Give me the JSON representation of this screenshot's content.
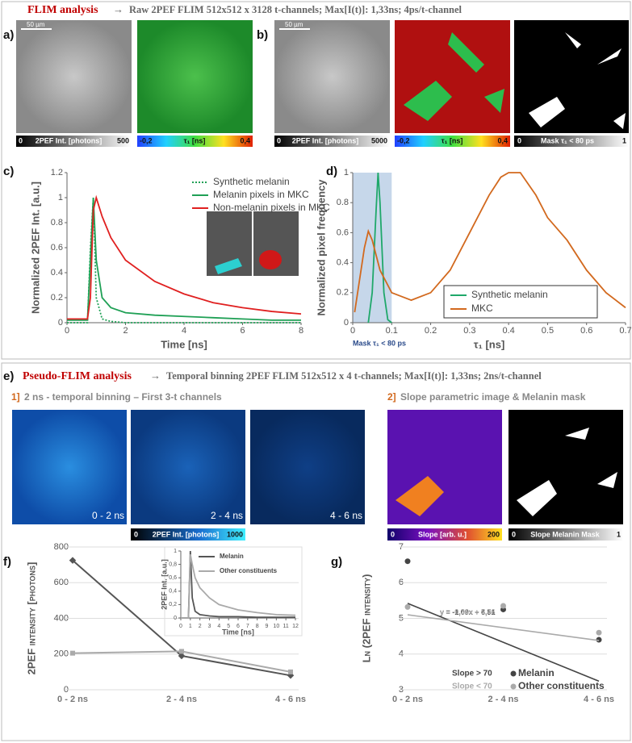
{
  "header": {
    "title": "FLIM analysis",
    "subtitle": "Raw 2PEF FLIM 512x512 x 3128 t-channels; Max[I(t)]: 1,33ns; 4ps/t-channel"
  },
  "panel_labels": [
    "a)",
    "b)",
    "c)",
    "d)",
    "e)",
    "f)",
    "g)"
  ],
  "scale_bars": [
    "50 µm",
    "50 µm"
  ],
  "colorbars": [
    {
      "min": "0",
      "label": "2PEF Int. [photons]",
      "max": "500"
    },
    {
      "min": "-0,2",
      "label": "τ₁ [ns]",
      "max": "0,4"
    },
    {
      "min": "0",
      "label": "2PEF Int. [photons]",
      "max": "5000"
    },
    {
      "min": "-0,2",
      "label": "τ₁ [ns]",
      "max": "0,4"
    },
    {
      "min": "0",
      "label": "Mask τ₁ < 80 ps",
      "max": "1"
    },
    {
      "min": "0",
      "label": "2PEF Int. [photons]",
      "max": "1000"
    },
    {
      "min": "0",
      "label": "Slope [arb. u.]",
      "max": "200"
    },
    {
      "min": "0",
      "label": "Slope Melanin Mask",
      "max": "1"
    }
  ],
  "section2": {
    "title": "Pseudo-FLIM analysis",
    "subtitle": "Temporal binning 2PEF FLIM 512x512 x 4 t-channels; Max[I(t)]: 1,33ns; 2ns/t-channel",
    "step1": {
      "num": "1]",
      "text": "2 ns - temporal binning – First 3-t channels"
    },
    "step2": {
      "num": "2]",
      "text": "Slope parametric image & Melanin mask"
    },
    "bins": [
      "0 - 2 ns",
      "2 - 4 ns",
      "4 - 6 ns"
    ]
  },
  "chart_data": [
    {
      "type": "line",
      "xlabel": "Time [ns]",
      "ylabel": "Normalized 2PEF Int. [a.u.]",
      "x": [
        0,
        0.7,
        0.8,
        0.9,
        1,
        1.2,
        1.5,
        2,
        3,
        4,
        5,
        6,
        7,
        8
      ],
      "series": [
        {
          "name": "Synthetic melanin",
          "color": "#1fa055",
          "style": "dotted",
          "values": [
            0,
            0,
            0.6,
            1,
            0.2,
            0.03,
            0.01,
            0,
            0,
            0,
            0,
            0,
            0,
            0
          ]
        },
        {
          "name": "Melanin pixels in MKC",
          "color": "#1fa055",
          "values": [
            0.02,
            0.02,
            0.5,
            1,
            0.5,
            0.2,
            0.12,
            0.08,
            0.06,
            0.05,
            0.04,
            0.03,
            0.02,
            0.02
          ]
        },
        {
          "name": "Non-melanin pixels in MKC",
          "color": "#e02020",
          "values": [
            0.03,
            0.03,
            0.2,
            0.9,
            1,
            0.85,
            0.68,
            0.5,
            0.33,
            0.23,
            0.16,
            0.12,
            0.09,
            0.07
          ]
        }
      ],
      "xlim": [
        0,
        8
      ],
      "xticks": [
        0,
        2,
        4,
        6,
        8
      ],
      "ylim": [
        0,
        1.2
      ],
      "yticks": [
        0,
        0.2,
        0.4,
        0.6,
        0.8,
        1,
        1.2
      ],
      "grid": false
    },
    {
      "type": "line",
      "xlabel": "τ₁ [ns]",
      "ylabel": "Normalized pixel frequency",
      "annotation": "Mask τ₁ < 80 ps",
      "shade": [
        0,
        0.1
      ],
      "series": [
        {
          "name": "Synthetic melanin",
          "color": "#1fa86a",
          "x": [
            0.04,
            0.05,
            0.06,
            0.065,
            0.07,
            0.08,
            0.09,
            0.1
          ],
          "values": [
            0,
            0.2,
            0.75,
            1,
            0.8,
            0.2,
            0.02,
            0
          ]
        },
        {
          "name": "MKC",
          "color": "#d2691e",
          "x": [
            0.005,
            0.03,
            0.04,
            0.05,
            0.07,
            0.1,
            0.15,
            0.2,
            0.25,
            0.3,
            0.35,
            0.38,
            0.4,
            0.43,
            0.47,
            0.5,
            0.55,
            0.6,
            0.65,
            0.7
          ],
          "values": [
            0.07,
            0.5,
            0.61,
            0.55,
            0.35,
            0.2,
            0.15,
            0.2,
            0.35,
            0.6,
            0.85,
            0.97,
            1,
            1,
            0.85,
            0.7,
            0.55,
            0.35,
            0.2,
            0.1
          ]
        }
      ],
      "xlim": [
        0,
        0.7
      ],
      "xticks": [
        0,
        0.1,
        0.2,
        0.3,
        0.4,
        0.5,
        0.6,
        0.7
      ],
      "ylim": [
        0,
        1
      ],
      "yticks": [
        0,
        0.2,
        0.4,
        0.6,
        0.8,
        1
      ],
      "grid": false
    },
    {
      "type": "line",
      "ylabel": "2PEF intensity [photons]",
      "categories": [
        "0 - 2 ns",
        "2 - 4 ns",
        "4 - 6 ns"
      ],
      "series": [
        {
          "name": "Melanin",
          "color": "#555555",
          "values": [
            725,
            190,
            80
          ]
        },
        {
          "name": "Other constituents",
          "color": "#aaaaaa",
          "values": [
            205,
            215,
            100
          ]
        }
      ],
      "ylim": [
        0,
        800
      ],
      "yticks": [
        0,
        200,
        400,
        600,
        800
      ],
      "grid": true
    },
    {
      "type": "scatter",
      "ylabel": "Ln (2PEF intensity)",
      "categories": [
        "0 - 2 ns",
        "2 - 4 ns",
        "4 - 6 ns"
      ],
      "series": [
        {
          "name": "Melanin",
          "note": "Slope > 70",
          "color": "#444444",
          "values": [
            6.6,
            5.25,
            4.4
          ],
          "trend": {
            "label": "y = -1,09x + 6,51",
            "slope": -1.09,
            "intercept": 6.51
          }
        },
        {
          "name": "Other constituents",
          "note": "Slope < 70",
          "color": "#aaaaaa",
          "values": [
            5.32,
            5.35,
            4.6
          ],
          "trend": {
            "label": "y = -0,36x + 5,46",
            "slope": -0.36,
            "intercept": 5.46
          }
        }
      ],
      "ylim": [
        3,
        7
      ],
      "yticks": [
        3,
        4,
        5,
        6,
        7
      ],
      "grid": true
    },
    {
      "type": "line",
      "xlabel": "Time [ns]",
      "ylabel": "2PEF Int. [a.u.]",
      "x": [
        0,
        0.8,
        1,
        1.2,
        1.5,
        2,
        3,
        4,
        6,
        8,
        10,
        12
      ],
      "series": [
        {
          "name": "Melanin",
          "color": "#555555",
          "values": [
            0,
            0,
            1,
            0.3,
            0.1,
            0.05,
            0.03,
            0.02,
            0.02,
            0.01,
            0.01,
            0.01
          ]
        },
        {
          "name": "Other constituents",
          "color": "#aaaaaa",
          "values": [
            0,
            0,
            0.95,
            0.8,
            0.6,
            0.45,
            0.3,
            0.2,
            0.12,
            0.08,
            0.05,
            0.04
          ]
        }
      ],
      "xlim": [
        0,
        12
      ],
      "xticks": [
        0,
        1,
        2,
        3,
        4,
        5,
        6,
        7,
        8,
        9,
        10,
        11,
        12
      ],
      "ylim": [
        0,
        1
      ],
      "yticks": [
        0,
        {
          "value": 0.2,
          "label": "0,2"
        },
        {
          "value": 0.4,
          "label": "0,4"
        },
        {
          "value": 0.6,
          "label": "0,6"
        },
        {
          "value": 0.8,
          "label": "0,8"
        },
        1
      ],
      "grid": false
    }
  ]
}
